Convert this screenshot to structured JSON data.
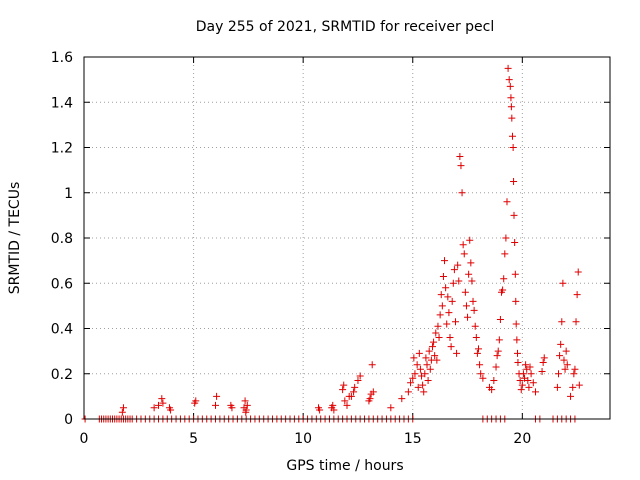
{
  "chart_data": {
    "type": "scatter",
    "title": "Day 255 of 2021, SRMTID for receiver pecl",
    "xlabel": "GPS time / hours",
    "ylabel": "SRMTID / TECUs",
    "xlim": [
      0,
      24
    ],
    "ylim": [
      0,
      1.6
    ],
    "xticks": [
      0,
      5,
      10,
      15,
      20
    ],
    "yticks": [
      0,
      0.2,
      0.4,
      0.6,
      0.8,
      1.0,
      1.2,
      1.4,
      1.6
    ],
    "xtick_labels": [
      "0",
      "5",
      "10",
      "15",
      "20"
    ],
    "ytick_labels": [
      "0",
      "0.2",
      "0.4",
      "0.6",
      "0.8",
      "1",
      "1.2",
      "1.4",
      "1.6"
    ],
    "grid": true,
    "marker": "+",
    "color": "#e00000",
    "series": [
      {
        "name": "pecl",
        "points": [
          [
            0.05,
            0
          ],
          [
            0.7,
            0
          ],
          [
            0.8,
            0
          ],
          [
            0.9,
            0
          ],
          [
            1.0,
            0
          ],
          [
            1.1,
            0
          ],
          [
            1.2,
            0
          ],
          [
            1.3,
            0
          ],
          [
            1.4,
            0
          ],
          [
            1.5,
            0
          ],
          [
            1.6,
            0
          ],
          [
            1.7,
            0
          ],
          [
            1.8,
            0
          ],
          [
            1.9,
            0
          ],
          [
            2.0,
            0
          ],
          [
            2.1,
            0
          ],
          [
            2.2,
            0
          ],
          [
            2.4,
            0
          ],
          [
            2.6,
            0
          ],
          [
            2.8,
            0
          ],
          [
            3.0,
            0
          ],
          [
            3.2,
            0
          ],
          [
            3.4,
            0
          ],
          [
            3.6,
            0
          ],
          [
            3.8,
            0
          ],
          [
            4.0,
            0
          ],
          [
            4.2,
            0
          ],
          [
            4.4,
            0
          ],
          [
            4.6,
            0
          ],
          [
            4.8,
            0
          ],
          [
            5.0,
            0
          ],
          [
            5.2,
            0
          ],
          [
            5.4,
            0
          ],
          [
            5.6,
            0
          ],
          [
            5.8,
            0
          ],
          [
            6.0,
            0
          ],
          [
            6.2,
            0
          ],
          [
            6.4,
            0
          ],
          [
            6.6,
            0
          ],
          [
            6.8,
            0
          ],
          [
            7.0,
            0
          ],
          [
            7.2,
            0
          ],
          [
            7.4,
            0
          ],
          [
            7.6,
            0
          ],
          [
            7.8,
            0
          ],
          [
            8.0,
            0
          ],
          [
            8.2,
            0
          ],
          [
            8.4,
            0
          ],
          [
            8.6,
            0
          ],
          [
            8.8,
            0
          ],
          [
            9.0,
            0
          ],
          [
            9.2,
            0
          ],
          [
            9.4,
            0
          ],
          [
            9.6,
            0
          ],
          [
            9.8,
            0
          ],
          [
            10.0,
            0
          ],
          [
            10.2,
            0
          ],
          [
            10.4,
            0
          ],
          [
            10.6,
            0
          ],
          [
            10.8,
            0
          ],
          [
            11.0,
            0
          ],
          [
            11.2,
            0
          ],
          [
            11.4,
            0
          ],
          [
            11.6,
            0
          ],
          [
            11.8,
            0
          ],
          [
            12.0,
            0
          ],
          [
            12.2,
            0
          ],
          [
            12.4,
            0
          ],
          [
            12.6,
            0
          ],
          [
            12.8,
            0
          ],
          [
            13.0,
            0
          ],
          [
            13.2,
            0
          ],
          [
            13.4,
            0
          ],
          [
            13.6,
            0
          ],
          [
            13.8,
            0
          ],
          [
            14.0,
            0
          ],
          [
            14.2,
            0
          ],
          [
            14.4,
            0
          ],
          [
            14.6,
            0
          ],
          [
            14.8,
            0
          ],
          [
            15.0,
            0
          ],
          [
            18.2,
            0
          ],
          [
            18.4,
            0
          ],
          [
            18.6,
            0
          ],
          [
            18.8,
            0
          ],
          [
            19.0,
            0
          ],
          [
            19.2,
            0
          ],
          [
            20.6,
            0
          ],
          [
            20.8,
            0
          ],
          [
            21.4,
            0
          ],
          [
            21.6,
            0
          ],
          [
            21.8,
            0
          ],
          [
            22.0,
            0
          ],
          [
            22.2,
            0
          ],
          [
            22.4,
            0
          ],
          [
            1.75,
            0.03
          ],
          [
            1.8,
            0.05
          ],
          [
            3.2,
            0.05
          ],
          [
            3.4,
            0.06
          ],
          [
            3.6,
            0.07
          ],
          [
            3.55,
            0.09
          ],
          [
            3.9,
            0.05
          ],
          [
            3.95,
            0.04
          ],
          [
            5.05,
            0.07
          ],
          [
            5.1,
            0.08
          ],
          [
            6.0,
            0.06
          ],
          [
            6.05,
            0.1
          ],
          [
            6.7,
            0.06
          ],
          [
            6.75,
            0.05
          ],
          [
            7.3,
            0.05
          ],
          [
            7.35,
            0.08
          ],
          [
            7.4,
            0.04
          ],
          [
            7.45,
            0.06
          ],
          [
            7.38,
            0.03
          ],
          [
            10.7,
            0.05
          ],
          [
            10.75,
            0.04
          ],
          [
            11.3,
            0.05
          ],
          [
            11.35,
            0.06
          ],
          [
            11.4,
            0.04
          ],
          [
            11.8,
            0.13
          ],
          [
            11.85,
            0.15
          ],
          [
            11.9,
            0.08
          ],
          [
            12.0,
            0.06
          ],
          [
            12.1,
            0.1
          ],
          [
            12.2,
            0.1
          ],
          [
            12.3,
            0.12
          ],
          [
            12.35,
            0.14
          ],
          [
            12.5,
            0.17
          ],
          [
            12.6,
            0.19
          ],
          [
            13.0,
            0.08
          ],
          [
            13.05,
            0.09
          ],
          [
            13.1,
            0.11
          ],
          [
            13.15,
            0.24
          ],
          [
            13.2,
            0.12
          ],
          [
            14.0,
            0.05
          ],
          [
            14.5,
            0.09
          ],
          [
            14.8,
            0.12
          ],
          [
            14.9,
            0.16
          ],
          [
            15.0,
            0.18
          ],
          [
            15.05,
            0.27
          ],
          [
            15.1,
            0.2
          ],
          [
            15.2,
            0.24
          ],
          [
            15.25,
            0.14
          ],
          [
            15.3,
            0.29
          ],
          [
            15.35,
            0.22
          ],
          [
            15.4,
            0.19
          ],
          [
            15.45,
            0.15
          ],
          [
            15.5,
            0.12
          ],
          [
            15.55,
            0.2
          ],
          [
            15.6,
            0.27
          ],
          [
            15.65,
            0.24
          ],
          [
            15.7,
            0.17
          ],
          [
            15.75,
            0.3
          ],
          [
            15.8,
            0.22
          ],
          [
            15.85,
            0.26
          ],
          [
            15.9,
            0.32
          ],
          [
            15.95,
            0.34
          ],
          [
            16.0,
            0.28
          ],
          [
            16.05,
            0.38
          ],
          [
            16.1,
            0.26
          ],
          [
            16.15,
            0.41
          ],
          [
            16.2,
            0.36
          ],
          [
            16.25,
            0.46
          ],
          [
            16.3,
            0.55
          ],
          [
            16.35,
            0.5
          ],
          [
            16.4,
            0.63
          ],
          [
            16.45,
            0.7
          ],
          [
            16.5,
            0.58
          ],
          [
            16.55,
            0.42
          ],
          [
            16.6,
            0.54
          ],
          [
            16.65,
            0.47
          ],
          [
            16.7,
            0.36
          ],
          [
            16.75,
            0.32
          ],
          [
            16.8,
            0.52
          ],
          [
            16.85,
            0.6
          ],
          [
            16.9,
            0.66
          ],
          [
            16.95,
            0.43
          ],
          [
            17.0,
            0.29
          ],
          [
            17.05,
            0.68
          ],
          [
            17.1,
            0.61
          ],
          [
            17.15,
            1.16
          ],
          [
            17.2,
            1.12
          ],
          [
            17.25,
            1.0
          ],
          [
            17.3,
            0.77
          ],
          [
            17.35,
            0.73
          ],
          [
            17.4,
            0.56
          ],
          [
            17.45,
            0.5
          ],
          [
            17.5,
            0.45
          ],
          [
            17.55,
            0.64
          ],
          [
            17.6,
            0.79
          ],
          [
            17.65,
            0.69
          ],
          [
            17.7,
            0.61
          ],
          [
            17.75,
            0.52
          ],
          [
            17.8,
            0.48
          ],
          [
            17.85,
            0.41
          ],
          [
            17.9,
            0.36
          ],
          [
            17.95,
            0.29
          ],
          [
            18.0,
            0.31
          ],
          [
            18.05,
            0.24
          ],
          [
            18.1,
            0.2
          ],
          [
            18.2,
            0.18
          ],
          [
            18.5,
            0.14
          ],
          [
            18.6,
            0.13
          ],
          [
            18.7,
            0.17
          ],
          [
            18.8,
            0.23
          ],
          [
            18.85,
            0.28
          ],
          [
            18.9,
            0.3
          ],
          [
            18.95,
            0.35
          ],
          [
            19.0,
            0.44
          ],
          [
            19.05,
            0.56
          ],
          [
            19.1,
            0.57
          ],
          [
            19.15,
            0.62
          ],
          [
            19.2,
            0.73
          ],
          [
            19.25,
            0.8
          ],
          [
            19.3,
            0.96
          ],
          [
            19.35,
            1.55
          ],
          [
            19.4,
            1.5
          ],
          [
            19.45,
            1.47
          ],
          [
            19.48,
            1.42
          ],
          [
            19.5,
            1.38
          ],
          [
            19.52,
            1.33
          ],
          [
            19.55,
            1.25
          ],
          [
            19.58,
            1.2
          ],
          [
            19.6,
            1.05
          ],
          [
            19.62,
            0.9
          ],
          [
            19.65,
            0.78
          ],
          [
            19.68,
            0.64
          ],
          [
            19.7,
            0.52
          ],
          [
            19.72,
            0.42
          ],
          [
            19.75,
            0.35
          ],
          [
            19.78,
            0.29
          ],
          [
            19.8,
            0.25
          ],
          [
            19.85,
            0.2
          ],
          [
            19.9,
            0.17
          ],
          [
            19.95,
            0.13
          ],
          [
            20.0,
            0.15
          ],
          [
            20.05,
            0.2
          ],
          [
            20.1,
            0.18
          ],
          [
            20.15,
            0.24
          ],
          [
            20.2,
            0.22
          ],
          [
            20.25,
            0.17
          ],
          [
            20.3,
            0.14
          ],
          [
            20.35,
            0.23
          ],
          [
            20.4,
            0.2
          ],
          [
            20.5,
            0.16
          ],
          [
            20.6,
            0.12
          ],
          [
            20.9,
            0.21
          ],
          [
            20.95,
            0.25
          ],
          [
            21.0,
            0.27
          ],
          [
            21.6,
            0.14
          ],
          [
            21.65,
            0.2
          ],
          [
            21.7,
            0.28
          ],
          [
            21.75,
            0.33
          ],
          [
            21.8,
            0.43
          ],
          [
            21.85,
            0.6
          ],
          [
            21.9,
            0.26
          ],
          [
            21.95,
            0.22
          ],
          [
            22.0,
            0.3
          ],
          [
            22.05,
            0.24
          ],
          [
            22.2,
            0.1
          ],
          [
            22.3,
            0.14
          ],
          [
            22.35,
            0.2
          ],
          [
            22.4,
            0.22
          ],
          [
            22.45,
            0.43
          ],
          [
            22.5,
            0.55
          ],
          [
            22.55,
            0.65
          ],
          [
            22.6,
            0.15
          ]
        ]
      }
    ]
  }
}
